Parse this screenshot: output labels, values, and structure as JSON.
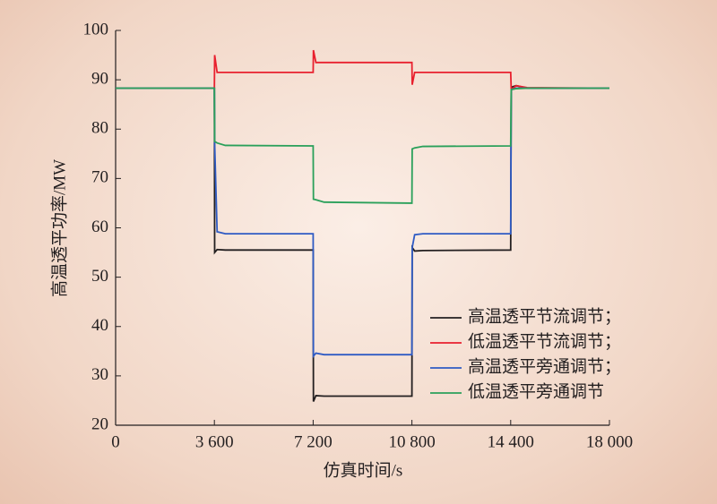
{
  "chart_data": {
    "type": "line",
    "xlabel": "仿真时间/s",
    "ylabel": "高温透平功率/MW",
    "x": [
      0,
      3600,
      3610,
      3700,
      4000,
      7200,
      7210,
      7300,
      7600,
      10800,
      10810,
      10900,
      11200,
      14400,
      14420,
      14600,
      15000,
      18000
    ],
    "series": [
      {
        "name": "高温透平节流调节；",
        "color": "#231f20",
        "values": [
          88.3,
          88.3,
          55,
          55.6,
          55.5,
          55.5,
          24.8,
          26,
          25.9,
          25.9,
          56,
          55.3,
          55.4,
          55.5,
          88.5,
          88.8,
          88.3,
          88.3
        ]
      },
      {
        "name": "低温透平节流调节；",
        "color": "#e8202e",
        "values": [
          88.3,
          88.3,
          95,
          91.5,
          91.5,
          91.5,
          96,
          93.5,
          93.5,
          93.5,
          89,
          91.5,
          91.5,
          91.5,
          88,
          88.8,
          88.4,
          88.3
        ]
      },
      {
        "name": "高温透平旁通调节；",
        "color": "#2f5bc4",
        "values": [
          88.3,
          88.3,
          77,
          59.2,
          58.8,
          58.8,
          34,
          34.6,
          34.3,
          34.3,
          56,
          58.6,
          58.8,
          58.8,
          88,
          88.3,
          88.3,
          88.3
        ]
      },
      {
        "name": "低温透平旁通调节",
        "color": "#2aa05a",
        "values": [
          88.3,
          88.3,
          77.5,
          77.2,
          76.7,
          76.6,
          65.8,
          65.7,
          65.2,
          65,
          76,
          76.2,
          76.5,
          76.6,
          88,
          88.2,
          88.3,
          88.3
        ]
      }
    ],
    "xlim": [
      0,
      18000
    ],
    "xticks": [
      0,
      {
        "value": 3600,
        "label": "3 600"
      },
      {
        "value": 7200,
        "label": "7 200"
      },
      {
        "value": 10800,
        "label": "10 800"
      },
      {
        "value": 14400,
        "label": "14 400"
      },
      {
        "value": 18000,
        "label": "18 000"
      }
    ],
    "ylim": [
      20,
      100
    ],
    "yticks": [
      20,
      30,
      40,
      50,
      60,
      70,
      80,
      90,
      100
    ],
    "grid": false,
    "legend": "lower right"
  }
}
